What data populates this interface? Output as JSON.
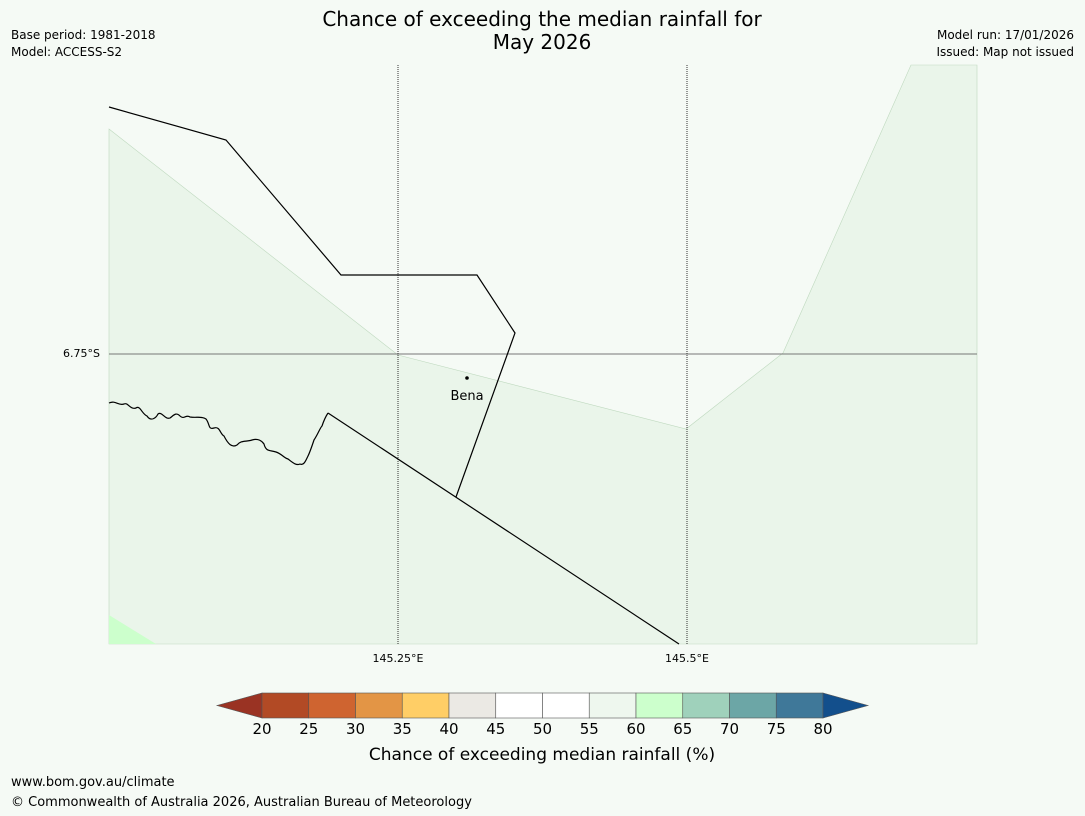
{
  "header": {
    "title_line1": "Chance of exceeding the median rainfall for",
    "title_line2": "May 2026",
    "base_period": "Base period: 1981-2018",
    "model": "Model: ACCESS-S2",
    "model_run": "Model run: 17/01/2026",
    "issued": "Issued: Map not issued"
  },
  "map": {
    "lat_label": "6.75°S",
    "lon_labels": [
      "145.25°E",
      "145.5°E"
    ],
    "place": "Bena",
    "colors": {
      "background": "#f5faf5",
      "band_55_60": "#eaf5ea",
      "band_60_65": "#ccffcc"
    }
  },
  "colorbar": {
    "ticks": [
      "20",
      "25",
      "30",
      "35",
      "40",
      "45",
      "50",
      "55",
      "60",
      "65",
      "70",
      "75",
      "80"
    ],
    "colors": [
      "#9a3323",
      "#b24a25",
      "#cf6430",
      "#e39545",
      "#ffce66",
      "#ebe9e4",
      "#ffffff",
      "#ffffff",
      "#eef7ee",
      "#ccffcc",
      "#9fd1bb",
      "#6ca6a6",
      "#3f7899",
      "#134f8c"
    ],
    "label": "Chance of exceeding median rainfall (%)"
  },
  "footer": {
    "url": "www.bom.gov.au/climate",
    "copyright": "© Commonwealth of Australia 2026, Australian Bureau of Meteorology"
  }
}
